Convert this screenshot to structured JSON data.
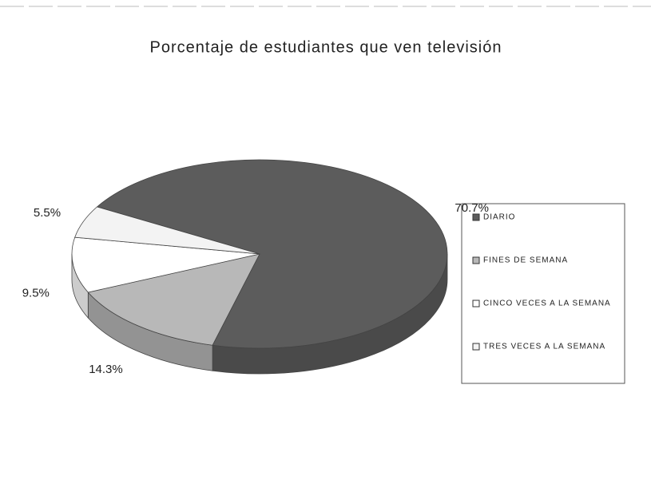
{
  "chart_data": {
    "type": "pie",
    "title": "Porcentaje de estudiantes que ven televisión",
    "categories": [
      "DIARIO",
      "FINES DE SEMANA",
      "CINCO VECES A LA SEMANA",
      "TRES VECES A LA SEMANA"
    ],
    "values": [
      70.7,
      14.3,
      9.5,
      5.5
    ],
    "value_labels": [
      "70.7%",
      "14.3%",
      "9.5%",
      "5.5%"
    ],
    "colors": [
      "#5c5c5c",
      "#b8b8b8",
      "#ffffff",
      "#f3f3f3"
    ],
    "legend": "right"
  }
}
